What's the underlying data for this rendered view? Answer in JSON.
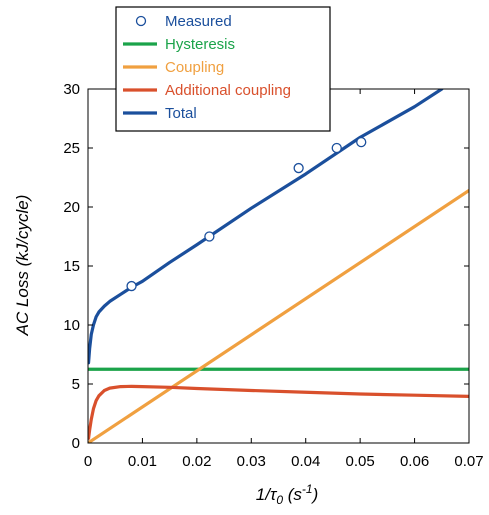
{
  "chart_data": {
    "type": "line",
    "title": "",
    "xlabel": {
      "main": "1/τ",
      "sub": "0",
      "unit_open": " (s",
      "unit_sup": "-1",
      "unit_close": ")"
    },
    "ylabel": "AC Loss (kJ/cycle)",
    "xlim": [
      0,
      0.07
    ],
    "ylim": [
      0,
      30
    ],
    "x_ticks": [
      0,
      0.01,
      0.02,
      0.03,
      0.04,
      0.05,
      0.06,
      0.07
    ],
    "x_tick_labels": [
      "0",
      "0.01",
      "0.02",
      "0.03",
      "0.04",
      "0.05",
      "0.06",
      "0.07"
    ],
    "y_ticks": [
      0,
      5,
      10,
      15,
      20,
      25,
      30
    ],
    "y_tick_labels": [
      "0",
      "5",
      "10",
      "15",
      "20",
      "25",
      "30"
    ],
    "grid": false,
    "legend_position": "top-left",
    "series": [
      {
        "name": "Measured",
        "kind": "markers",
        "color": "#1b4f9c",
        "x": [
          0.008,
          0.0223,
          0.0387,
          0.0457,
          0.0502
        ],
        "y": [
          13.3,
          17.5,
          23.3,
          25.0,
          25.5
        ]
      },
      {
        "name": "Hysteresis",
        "kind": "line",
        "color": "#1ba34a",
        "x": [
          0,
          0.07
        ],
        "y": [
          6.25,
          6.25
        ]
      },
      {
        "name": "Coupling",
        "kind": "line",
        "color": "#f0a040",
        "x": [
          0,
          0.07
        ],
        "y": [
          0,
          21.4
        ]
      },
      {
        "name": "Additional coupling",
        "kind": "line",
        "color": "#d9502c",
        "x": [
          0.0001,
          0.0003,
          0.0006,
          0.001,
          0.0015,
          0.002,
          0.003,
          0.004,
          0.006,
          0.008,
          0.01,
          0.015,
          0.02,
          0.03,
          0.04,
          0.05,
          0.06,
          0.07
        ],
        "y": [
          0.4,
          1.1,
          2.0,
          2.9,
          3.6,
          4.0,
          4.45,
          4.65,
          4.78,
          4.8,
          4.78,
          4.72,
          4.62,
          4.45,
          4.3,
          4.15,
          4.05,
          3.95
        ]
      },
      {
        "name": "Total",
        "kind": "line",
        "color": "#1b4f9c",
        "x": [
          0.0001,
          0.0003,
          0.0006,
          0.001,
          0.0015,
          0.002,
          0.003,
          0.004,
          0.006,
          0.008,
          0.01,
          0.015,
          0.02,
          0.03,
          0.04,
          0.05,
          0.06,
          0.065
        ],
        "y": [
          6.8,
          8.0,
          9.2,
          10.0,
          10.7,
          11.1,
          11.6,
          12.0,
          12.6,
          13.2,
          13.7,
          15.3,
          16.8,
          19.9,
          22.8,
          25.9,
          28.5,
          30.0
        ]
      }
    ]
  }
}
